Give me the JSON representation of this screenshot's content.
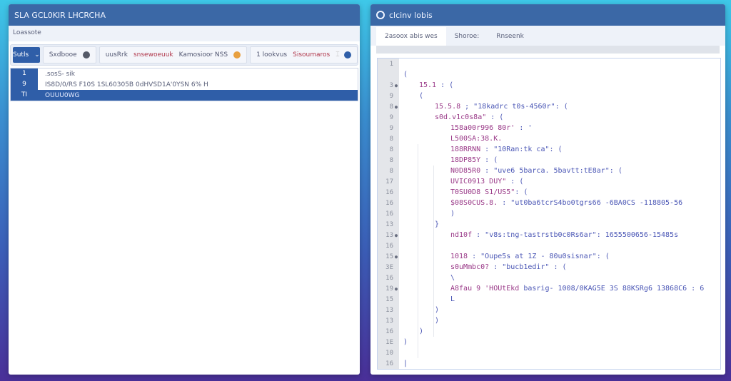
{
  "left": {
    "title": "SLA GCL0KIR LHCRCHA",
    "subtitle": "Loassote",
    "toolbar": {
      "primary": "Sutls",
      "primary_icon": "chevron-down-icon",
      "group1": [
        "Sxdbooe"
      ],
      "group2": [
        "uusRrk",
        "snsewoeuuk",
        "Kamosioor NSS"
      ],
      "group3": [
        "1 lookvus",
        "Sisoumaros"
      ]
    },
    "rows": [
      {
        "num": "1",
        "text": ".sosS- sik",
        "selected": false
      },
      {
        "num": "9",
        "text": "IS8D/0/RS F10S 1SL60305B 0dHVSD1A'0YSN 6% H",
        "selected": false
      },
      {
        "num": "TI",
        "text": "OUUU0WG",
        "selected": true
      }
    ]
  },
  "right": {
    "title": "clcinv lobis",
    "tabs": [
      "2asoox abis wes",
      "Shoroe:",
      "Rnseenk"
    ],
    "lines": [
      {
        "n": "1",
        "i": 0,
        "k": "",
        "v": ""
      },
      {
        "n": "",
        "i": 0,
        "k": "",
        "v": "("
      },
      {
        "n": "3",
        "f": true,
        "i": 1,
        "k": "15.1",
        "v": " : ("
      },
      {
        "n": "9",
        "i": 1,
        "k": "",
        "v": "("
      },
      {
        "n": "8",
        "f": true,
        "i": 2,
        "k": "15.5.8",
        "v": " ; \"18kadrc t0s-4560r\": ("
      },
      {
        "n": "9",
        "i": 2,
        "k": "s0d.v1c0s8a\"",
        "v": " : ("
      },
      {
        "n": "9",
        "i": 3,
        "k": "158a00r996 80r'",
        "v": " : '"
      },
      {
        "n": "8",
        "i": 3,
        "k": "L500SA:38.K.",
        "v": ""
      },
      {
        "n": "8",
        "i": 3,
        "k": "188RRNN",
        "v": " : \"10Ran:tk ca\": ("
      },
      {
        "n": "8",
        "i": 3,
        "k": "18DP85Y",
        "v": " : ("
      },
      {
        "n": "8",
        "i": 3,
        "k": "N0D85R0",
        "v": " : \"uve6 5barca. 5bavtt:tE8ar\": ("
      },
      {
        "n": "17",
        "i": 3,
        "k": "UVIC0913 DUY\"",
        "v": " : ("
      },
      {
        "n": "16",
        "i": 3,
        "k": "T0SU0D8 S1/US5\"",
        "v": ": ("
      },
      {
        "n": "16",
        "i": 3,
        "k": "$08S0CUS.8.",
        "v": " : \"ut0ba6tcrS4bo0tgrs66 -6BA0CS -118805-56"
      },
      {
        "n": "16",
        "i": 3,
        "k": "",
        "v": ")"
      },
      {
        "n": "13",
        "i": 2,
        "k": "",
        "v": "}"
      },
      {
        "n": "13",
        "f": true,
        "i": 3,
        "k": "nd10f",
        "v": " : \"v8s:tng-tastrstb0c0Rs6ar\": 1655500656-15485s"
      },
      {
        "n": "16",
        "i": 3,
        "k": "",
        "v": ""
      },
      {
        "n": "15",
        "f": true,
        "i": 3,
        "k": "1018",
        "v": " : \"Oupe5s at 1Z - 80u0sisnar\": ("
      },
      {
        "n": "3E",
        "i": 3,
        "k": "s0uMmbc0?",
        "v": " : \"bucb1edir\" : ("
      },
      {
        "n": "16",
        "i": 3,
        "k": "",
        "v": "\\"
      },
      {
        "n": "19",
        "f": true,
        "i": 3,
        "k": "A8fau 9 'HOUtEkd",
        "v": " basrig- 1008/0KAG5E 3S 88KSRg6 13868C6 : 6"
      },
      {
        "n": "15",
        "i": 3,
        "k": "",
        "v": "L"
      },
      {
        "n": "13",
        "i": 2,
        "k": "",
        "v": ")"
      },
      {
        "n": "13",
        "i": 2,
        "k": "",
        "v": ")"
      },
      {
        "n": "16",
        "i": 1,
        "k": "",
        "v": ")"
      },
      {
        "n": "1E",
        "i": 0,
        "k": "",
        "v": ")"
      },
      {
        "n": "10",
        "i": 0,
        "k": "",
        "v": ""
      },
      {
        "n": "16",
        "i": 0,
        "k": "",
        "v": "|"
      }
    ]
  },
  "colors": {
    "accent": "#2f5ea8",
    "key": "#9a3a88",
    "string": "#4a56b5",
    "alert": "#b0364a"
  }
}
